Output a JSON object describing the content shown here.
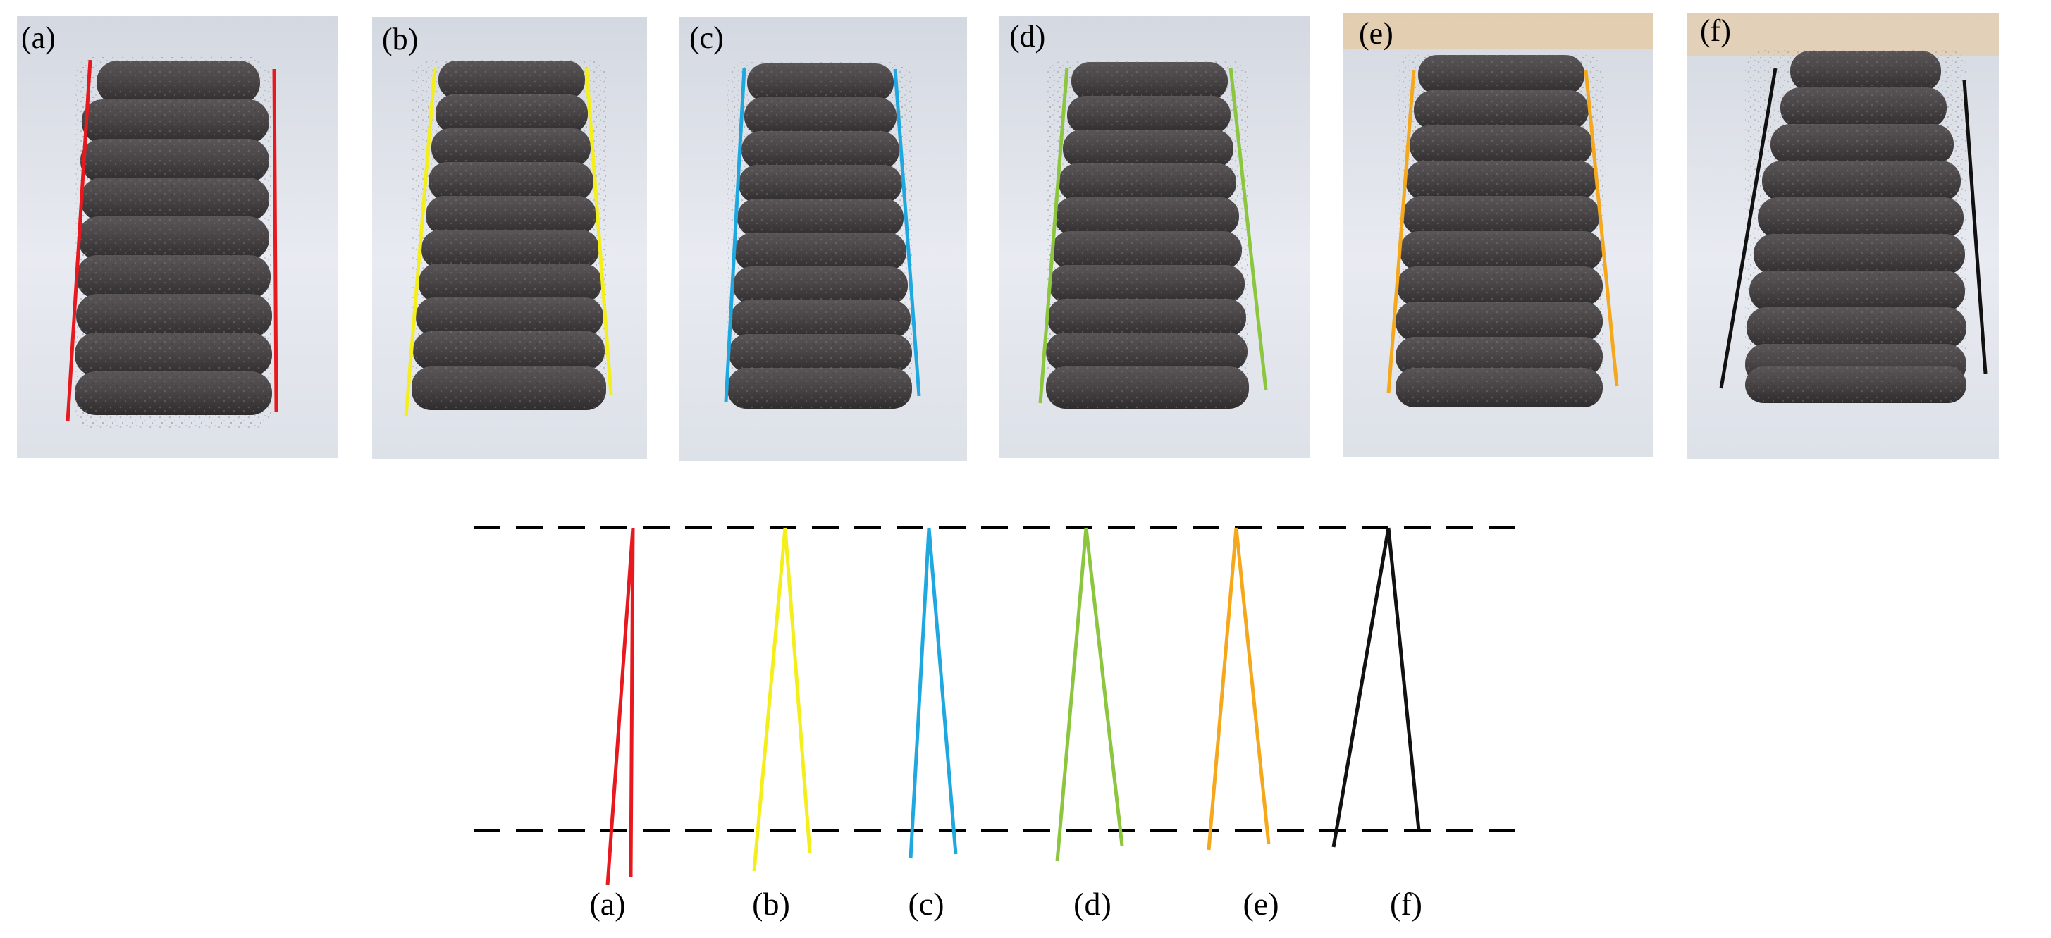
{
  "panels": [
    {
      "label": "(a)",
      "line_color": "#e8191e"
    },
    {
      "label": "(b)",
      "line_color": "#f4ee1a"
    },
    {
      "label": "(c)",
      "line_color": "#1fa8e0"
    },
    {
      "label": "(d)",
      "line_color": "#8cc63f"
    },
    {
      "label": "(e)",
      "line_color": "#f5a81c"
    },
    {
      "label": "(f)",
      "line_color": "#111111"
    }
  ],
  "diagram": {
    "guide_line_style": "dashed",
    "guide_line_color": "#000000",
    "labels": [
      "(a)",
      "(b)",
      "(c)",
      "(d)",
      "(e)",
      "(f)"
    ]
  },
  "colors": {
    "background": "#ffffff",
    "cloth": "#e3e7ef",
    "specimen": "#4a4648"
  }
}
